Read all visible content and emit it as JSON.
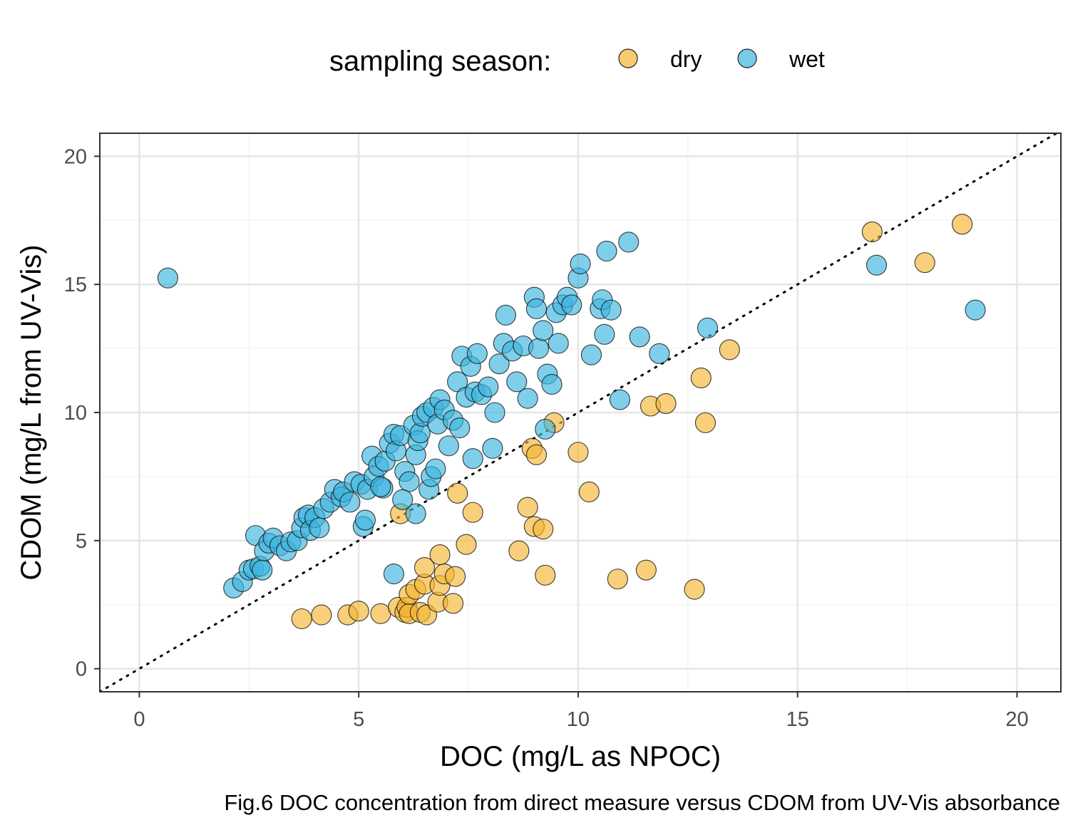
{
  "chart_data": {
    "type": "scatter",
    "title": "",
    "caption": "Fig.6 DOC concentration from direct measure versus CDOM from UV-Vis absorbance",
    "xlabel": "DOC (mg/L as NPOC)",
    "ylabel": "CDOM (mg/L from UV-Vis)",
    "xlim": [
      -0.9,
      21.0
    ],
    "ylim": [
      -0.9,
      20.9
    ],
    "xticks": [
      0,
      5,
      10,
      15,
      20
    ],
    "yticks": [
      0,
      5,
      10,
      15,
      20
    ],
    "grid": true,
    "reference_line": {
      "type": "1:1",
      "style": "dotted"
    },
    "legend": {
      "title": "sampling season:",
      "position": "top"
    },
    "series": [
      {
        "name": "dry",
        "color": "#F5B533",
        "points": [
          [
            3.7,
            1.95
          ],
          [
            4.15,
            2.1
          ],
          [
            4.75,
            2.1
          ],
          [
            5.0,
            2.25
          ],
          [
            5.5,
            2.15
          ],
          [
            5.9,
            2.4
          ],
          [
            6.05,
            2.2
          ],
          [
            6.1,
            2.4
          ],
          [
            6.15,
            2.15
          ],
          [
            6.15,
            2.9
          ],
          [
            6.3,
            3.1
          ],
          [
            6.4,
            2.2
          ],
          [
            6.5,
            3.3
          ],
          [
            6.55,
            2.1
          ],
          [
            6.5,
            3.95
          ],
          [
            6.8,
            2.6
          ],
          [
            6.85,
            3.25
          ],
          [
            6.85,
            4.45
          ],
          [
            6.95,
            3.7
          ],
          [
            7.15,
            2.55
          ],
          [
            7.2,
            3.6
          ],
          [
            7.45,
            4.85
          ],
          [
            7.25,
            6.85
          ],
          [
            7.6,
            6.1
          ],
          [
            5.95,
            6.05
          ],
          [
            8.65,
            4.6
          ],
          [
            8.85,
            6.3
          ],
          [
            8.95,
            8.6
          ],
          [
            9.0,
            5.55
          ],
          [
            9.05,
            8.35
          ],
          [
            9.2,
            5.45
          ],
          [
            9.25,
            3.65
          ],
          [
            9.45,
            9.6
          ],
          [
            10.0,
            8.45
          ],
          [
            10.25,
            6.9
          ],
          [
            10.9,
            3.5
          ],
          [
            11.55,
            3.85
          ],
          [
            11.65,
            10.25
          ],
          [
            12.0,
            10.35
          ],
          [
            12.65,
            3.1
          ],
          [
            12.8,
            11.35
          ],
          [
            12.9,
            9.6
          ],
          [
            13.45,
            12.45
          ],
          [
            16.7,
            17.05
          ],
          [
            17.9,
            15.85
          ],
          [
            18.75,
            17.35
          ]
        ]
      },
      {
        "name": "wet",
        "color": "#3CB5DE",
        "points": [
          [
            0.65,
            15.25
          ],
          [
            2.15,
            3.15
          ],
          [
            2.35,
            3.4
          ],
          [
            2.5,
            3.85
          ],
          [
            2.6,
            3.9
          ],
          [
            2.65,
            5.2
          ],
          [
            2.75,
            4.0
          ],
          [
            2.8,
            3.85
          ],
          [
            2.85,
            4.6
          ],
          [
            2.95,
            4.9
          ],
          [
            3.05,
            5.1
          ],
          [
            3.2,
            4.8
          ],
          [
            3.35,
            4.6
          ],
          [
            3.45,
            4.95
          ],
          [
            3.6,
            5.0
          ],
          [
            3.7,
            5.5
          ],
          [
            3.75,
            5.9
          ],
          [
            3.85,
            6.0
          ],
          [
            3.9,
            5.4
          ],
          [
            4.0,
            5.9
          ],
          [
            4.1,
            5.5
          ],
          [
            4.2,
            6.25
          ],
          [
            4.35,
            6.5
          ],
          [
            4.45,
            7.0
          ],
          [
            4.6,
            6.7
          ],
          [
            4.65,
            6.9
          ],
          [
            4.8,
            6.5
          ],
          [
            4.9,
            7.3
          ],
          [
            5.05,
            7.2
          ],
          [
            5.1,
            5.55
          ],
          [
            5.15,
            5.8
          ],
          [
            5.2,
            7.0
          ],
          [
            5.3,
            8.3
          ],
          [
            5.35,
            7.5
          ],
          [
            5.45,
            7.9
          ],
          [
            5.55,
            7.05
          ],
          [
            5.6,
            8.1
          ],
          [
            5.7,
            8.8
          ],
          [
            5.8,
            9.15
          ],
          [
            5.85,
            8.5
          ],
          [
            5.95,
            9.1
          ],
          [
            6.05,
            7.7
          ],
          [
            6.15,
            7.3
          ],
          [
            6.25,
            9.5
          ],
          [
            6.3,
            8.35
          ],
          [
            6.35,
            8.9
          ],
          [
            6.4,
            9.2
          ],
          [
            6.45,
            9.85
          ],
          [
            6.55,
            10.0
          ],
          [
            6.6,
            7.0
          ],
          [
            6.65,
            7.5
          ],
          [
            6.7,
            10.2
          ],
          [
            6.75,
            7.8
          ],
          [
            6.8,
            9.55
          ],
          [
            6.85,
            10.5
          ],
          [
            6.95,
            10.1
          ],
          [
            7.05,
            8.7
          ],
          [
            7.15,
            9.7
          ],
          [
            7.25,
            11.2
          ],
          [
            7.35,
            12.2
          ],
          [
            7.45,
            10.6
          ],
          [
            7.55,
            11.8
          ],
          [
            7.6,
            8.2
          ],
          [
            7.65,
            10.8
          ],
          [
            7.7,
            12.3
          ],
          [
            7.8,
            10.7
          ],
          [
            7.95,
            11.0
          ],
          [
            8.1,
            10.0
          ],
          [
            8.2,
            11.9
          ],
          [
            8.3,
            12.7
          ],
          [
            8.35,
            13.8
          ],
          [
            8.5,
            12.4
          ],
          [
            8.6,
            11.2
          ],
          [
            8.75,
            12.6
          ],
          [
            8.85,
            10.55
          ],
          [
            9.0,
            14.5
          ],
          [
            9.05,
            14.05
          ],
          [
            9.1,
            12.5
          ],
          [
            9.2,
            13.2
          ],
          [
            9.3,
            11.5
          ],
          [
            9.4,
            11.1
          ],
          [
            9.5,
            13.9
          ],
          [
            9.55,
            12.7
          ],
          [
            9.65,
            14.2
          ],
          [
            9.75,
            14.5
          ],
          [
            9.85,
            14.2
          ],
          [
            10.0,
            15.25
          ],
          [
            10.05,
            15.8
          ],
          [
            10.3,
            12.25
          ],
          [
            10.5,
            14.05
          ],
          [
            10.55,
            14.4
          ],
          [
            10.6,
            13.05
          ],
          [
            10.65,
            16.3
          ],
          [
            10.75,
            14.0
          ],
          [
            10.95,
            10.5
          ],
          [
            11.15,
            16.65
          ],
          [
            11.4,
            12.95
          ],
          [
            11.85,
            12.3
          ],
          [
            12.95,
            13.3
          ],
          [
            5.8,
            3.7
          ],
          [
            6.3,
            6.05
          ],
          [
            9.25,
            9.35
          ],
          [
            5.5,
            7.1
          ],
          [
            6.0,
            6.6
          ],
          [
            7.3,
            9.4
          ],
          [
            8.05,
            8.6
          ],
          [
            16.8,
            15.75
          ],
          [
            19.05,
            14.0
          ]
        ]
      }
    ]
  }
}
